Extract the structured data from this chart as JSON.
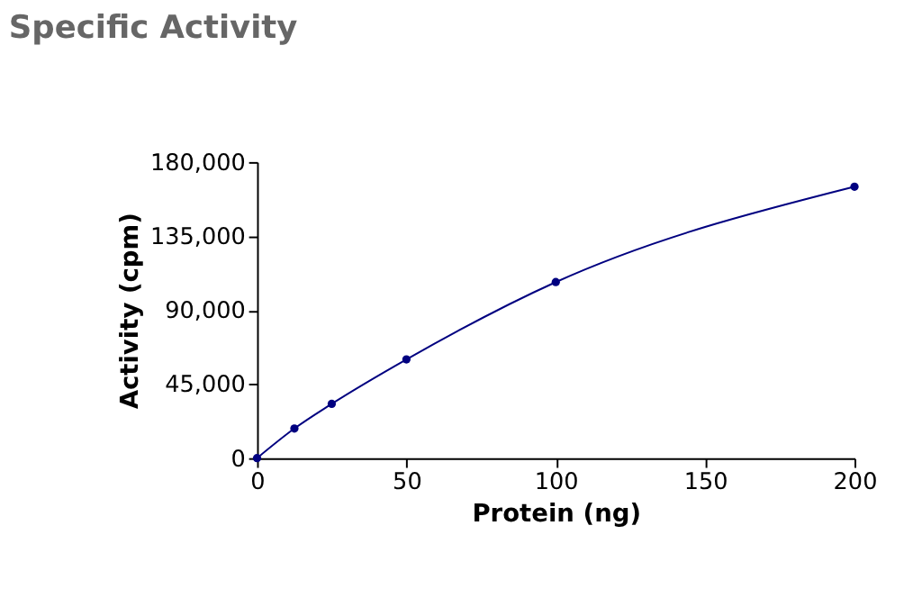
{
  "chart_data": {
    "type": "line",
    "title": "Specific Activity",
    "xlabel": "Protein (ng)",
    "ylabel": "Activity (cpm)",
    "x": [
      0,
      12.5,
      25,
      50,
      100,
      200
    ],
    "series": [
      {
        "color": "#000080",
        "values": [
          0,
          18000,
          33000,
          60000,
          107000,
          165000
        ]
      }
    ],
    "xlim": [
      0,
      200
    ],
    "xticks": [
      0,
      50,
      100,
      150,
      200
    ],
    "ylim": [
      0,
      180000
    ],
    "yticks": [
      0,
      {
        "value": 45000,
        "label": "45,000"
      },
      {
        "value": 90000,
        "label": "90,000"
      },
      {
        "value": 135000,
        "label": "135,000"
      },
      {
        "value": 180000,
        "label": "180,000"
      }
    ],
    "grid": false,
    "marker": "circle",
    "line_style": "solid"
  }
}
